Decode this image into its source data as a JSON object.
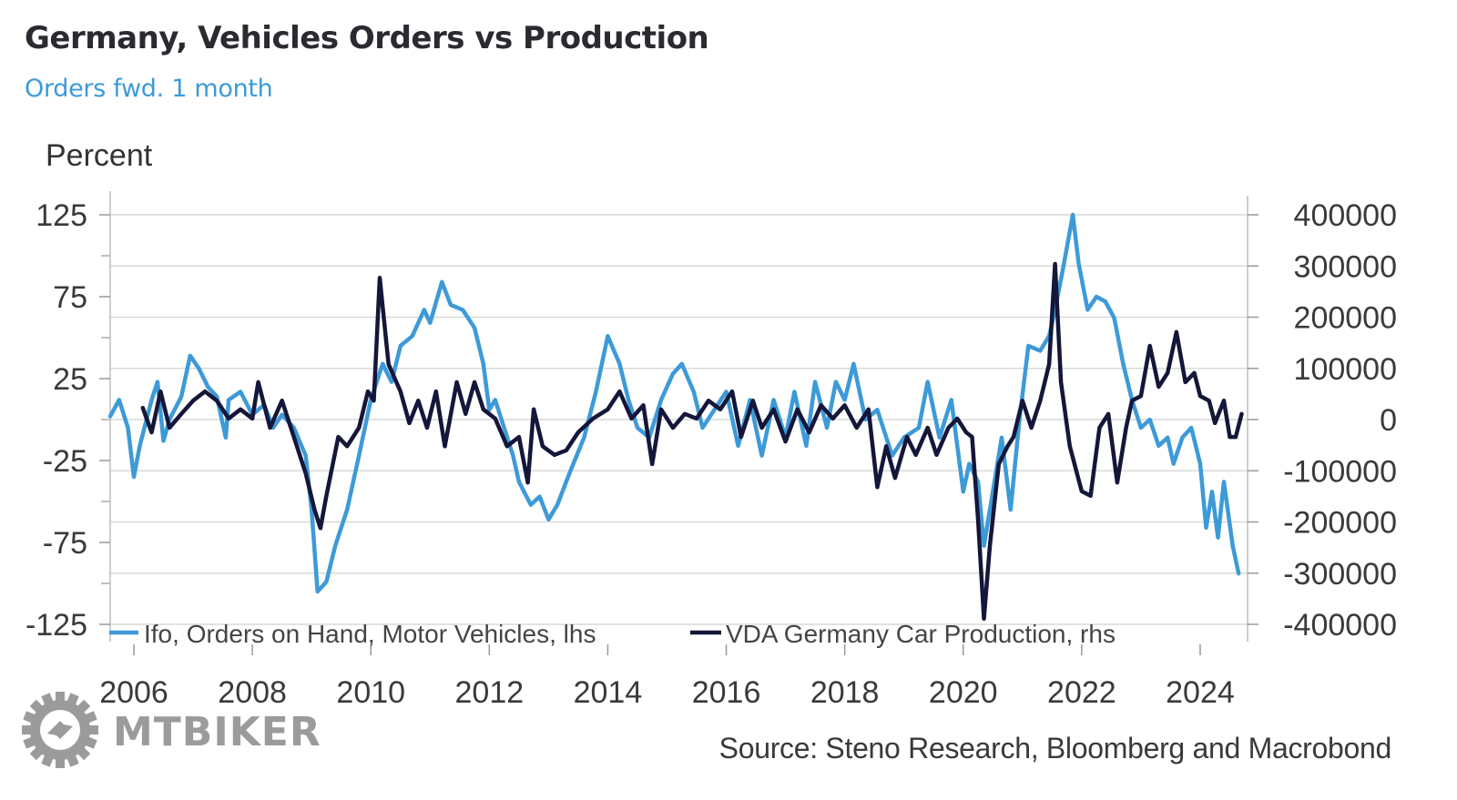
{
  "header": {
    "title": "Germany, Vehicles Orders vs Production",
    "subtitle": "Orders fwd. 1 month",
    "unit_label": "Percent"
  },
  "footer": {
    "source": "Source: Steno Research, Bloomberg and Macrobond",
    "watermark": "MTBIKER",
    "watermark_icon": "gear-logo-icon"
  },
  "colors": {
    "ifo": "#3d9ad8",
    "vda": "#14163a",
    "grid": "#d9d9d9",
    "axis": "#bdbdbd"
  },
  "chart_data": {
    "type": "line",
    "title": "Germany, Vehicles Orders vs Production",
    "subtitle": "Orders fwd. 1 month",
    "xlabel": "",
    "ylabel": "Percent",
    "y2label": "",
    "xlim": [
      2005.6,
      2024.8
    ],
    "ylim": [
      -125,
      125
    ],
    "y2lim": [
      -400000,
      400000
    ],
    "x_ticks": [
      2006,
      2008,
      2010,
      2012,
      2014,
      2016,
      2018,
      2020,
      2022,
      2024
    ],
    "x_tick_labels": [
      "2006",
      "2008",
      "2010",
      "2012",
      "2014",
      "2016",
      "2018",
      "2020",
      "2022",
      "2024"
    ],
    "y_ticks": [
      125,
      75,
      25,
      -25,
      -75,
      -125
    ],
    "y_tick_labels": [
      "125",
      "75",
      "25",
      "-25",
      "-75",
      "-125"
    ],
    "y_minor_ticks": [
      100,
      50,
      0,
      -50,
      -100
    ],
    "y2_ticks": [
      400000,
      300000,
      200000,
      100000,
      0,
      -100000,
      -200000,
      -300000,
      -400000
    ],
    "y2_tick_labels": [
      "400000",
      "300000",
      "200000",
      "100000",
      "0",
      "-100000",
      "-200000",
      "-300000",
      "-400000"
    ],
    "grid": true,
    "legend_position": "bottom-inside",
    "series": [
      {
        "name": "Ifo, Orders on Hand, Motor Vehicles, lhs",
        "axis": "left",
        "x": [
          2005.6,
          2005.75,
          2005.9,
          2006.0,
          2006.1,
          2006.3,
          2006.4,
          2006.5,
          2006.6,
          2006.8,
          2006.95,
          2007.1,
          2007.25,
          2007.4,
          2007.55,
          2007.6,
          2007.8,
          2008.0,
          2008.2,
          2008.35,
          2008.5,
          2008.7,
          2008.9,
          2009.0,
          2009.1,
          2009.25,
          2009.4,
          2009.6,
          2009.8,
          2010.0,
          2010.2,
          2010.35,
          2010.5,
          2010.7,
          2010.9,
          2011.0,
          2011.2,
          2011.35,
          2011.55,
          2011.75,
          2011.9,
          2012.0,
          2012.1,
          2012.25,
          2012.4,
          2012.5,
          2012.7,
          2012.85,
          2013.0,
          2013.15,
          2013.35,
          2013.6,
          2013.8,
          2014.0,
          2014.2,
          2014.35,
          2014.5,
          2014.7,
          2014.9,
          2015.1,
          2015.25,
          2015.45,
          2015.6,
          2015.8,
          2016.0,
          2016.2,
          2016.4,
          2016.6,
          2016.8,
          2017.0,
          2017.15,
          2017.35,
          2017.5,
          2017.7,
          2017.85,
          2018.0,
          2018.15,
          2018.35,
          2018.55,
          2018.8,
          2019.0,
          2019.25,
          2019.4,
          2019.6,
          2019.8,
          2020.0,
          2020.1,
          2020.25,
          2020.35,
          2020.5,
          2020.65,
          2020.8,
          2020.95,
          2021.1,
          2021.3,
          2021.45,
          2021.55,
          2021.7,
          2021.85,
          2021.95,
          2022.1,
          2022.25,
          2022.4,
          2022.55,
          2022.7,
          2022.85,
          2023.0,
          2023.15,
          2023.3,
          2023.45,
          2023.55,
          2023.7,
          2023.85,
          2024.0,
          2024.1,
          2024.2,
          2024.3,
          2024.4,
          2024.55,
          2024.65
        ],
        "values": [
          2,
          12,
          -5,
          -35,
          -16,
          12,
          23,
          -13,
          0,
          14,
          39,
          31,
          20,
          14,
          -11,
          12,
          17,
          3,
          9,
          -5,
          3,
          -5,
          -22,
          -55,
          -105,
          -99,
          -77,
          -55,
          -22,
          12,
          34,
          23,
          45,
          51,
          67,
          59,
          84,
          70,
          67,
          56,
          34,
          6,
          12,
          -5,
          -22,
          -38,
          -52,
          -47,
          -61,
          -52,
          -33,
          -11,
          17,
          51,
          34,
          12,
          -5,
          -11,
          12,
          28,
          34,
          17,
          -5,
          6,
          17,
          -16,
          12,
          -22,
          12,
          -11,
          17,
          -16,
          23,
          -5,
          23,
          12,
          34,
          0,
          6,
          -22,
          -11,
          -5,
          23,
          -11,
          12,
          -44,
          -27,
          -38,
          -77,
          -44,
          -11,
          -55,
          0,
          45,
          42,
          51,
          67,
          95,
          125,
          95,
          67,
          75,
          72,
          62,
          34,
          12,
          -5,
          0,
          -16,
          -11,
          -27,
          -11,
          -5,
          -27,
          -66,
          -44,
          -72,
          -38,
          -77,
          -94
        ]
      },
      {
        "name": "VDA Germany Car Production, rhs",
        "axis": "right",
        "x": [
          2006.15,
          2006.3,
          2006.45,
          2006.6,
          2006.8,
          2007.0,
          2007.2,
          2007.4,
          2007.6,
          2007.8,
          2008.0,
          2008.1,
          2008.3,
          2008.5,
          2008.7,
          2008.9,
          2009.05,
          2009.15,
          2009.25,
          2009.45,
          2009.6,
          2009.8,
          2009.95,
          2010.05,
          2010.15,
          2010.3,
          2010.5,
          2010.65,
          2010.8,
          2010.95,
          2011.1,
          2011.25,
          2011.45,
          2011.6,
          2011.75,
          2011.9,
          2012.1,
          2012.3,
          2012.5,
          2012.65,
          2012.75,
          2012.9,
          2013.1,
          2013.3,
          2013.5,
          2013.75,
          2014.0,
          2014.2,
          2014.4,
          2014.6,
          2014.75,
          2014.9,
          2015.1,
          2015.3,
          2015.5,
          2015.7,
          2015.9,
          2016.1,
          2016.25,
          2016.45,
          2016.6,
          2016.8,
          2017.0,
          2017.2,
          2017.4,
          2017.6,
          2017.8,
          2018.0,
          2018.2,
          2018.4,
          2018.55,
          2018.7,
          2018.85,
          2019.05,
          2019.2,
          2019.4,
          2019.55,
          2019.75,
          2019.9,
          2020.05,
          2020.15,
          2020.25,
          2020.35,
          2020.45,
          2020.6,
          2020.75,
          2020.85,
          2021.0,
          2021.15,
          2021.3,
          2021.45,
          2021.55,
          2021.65,
          2021.8,
          2022.0,
          2022.15,
          2022.3,
          2022.45,
          2022.6,
          2022.75,
          2022.85,
          2023.0,
          2023.15,
          2023.3,
          2023.45,
          2023.6,
          2023.75,
          2023.9,
          2024.0,
          2024.15,
          2024.25,
          2024.4,
          2024.5,
          2024.6,
          2024.7
        ],
        "values": [
          23000,
          -25000,
          55000,
          -16000,
          11000,
          37000,
          55000,
          37000,
          2000,
          20000,
          2000,
          73000,
          -16000,
          37000,
          -34000,
          -105000,
          -176000,
          -212000,
          -149000,
          -34000,
          -52000,
          -16000,
          55000,
          37000,
          277000,
          108000,
          55000,
          -7000,
          37000,
          -16000,
          55000,
          -52000,
          73000,
          11000,
          73000,
          20000,
          2000,
          -52000,
          -34000,
          -123000,
          20000,
          -52000,
          -69000,
          -60000,
          -25000,
          2000,
          20000,
          55000,
          2000,
          28000,
          -87000,
          20000,
          -16000,
          11000,
          2000,
          37000,
          20000,
          55000,
          -34000,
          37000,
          -16000,
          20000,
          -43000,
          20000,
          -25000,
          28000,
          2000,
          28000,
          -16000,
          20000,
          -132000,
          -52000,
          -114000,
          -34000,
          -69000,
          -16000,
          -69000,
          -16000,
          2000,
          -25000,
          -34000,
          -194000,
          -389000,
          -247000,
          -87000,
          -52000,
          -34000,
          37000,
          -16000,
          37000,
          108000,
          304000,
          73000,
          -52000,
          -140000,
          -149000,
          -16000,
          11000,
          -123000,
          -16000,
          37000,
          46000,
          144000,
          64000,
          91000,
          171000,
          73000,
          91000,
          46000,
          37000,
          -7000,
          37000,
          -34000,
          -34000,
          11000
        ]
      }
    ]
  }
}
